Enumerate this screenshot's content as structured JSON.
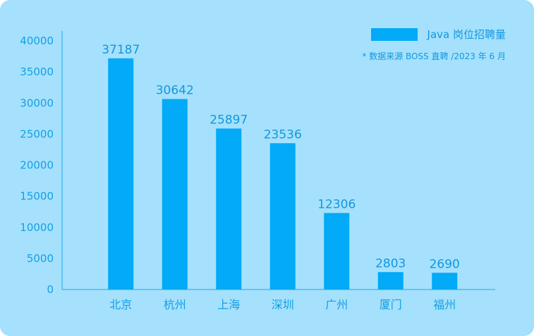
{
  "chart_data": {
    "type": "bar",
    "categories": [
      "北京",
      "杭州",
      "上海",
      "深圳",
      "广州",
      "厦门",
      "福州"
    ],
    "values": [
      37187,
      30642,
      25897,
      23536,
      12306,
      2803,
      2690
    ],
    "series": [
      {
        "name": "Java 岗位招聘量",
        "values": [
          37187,
          30642,
          25897,
          23536,
          12306,
          2803,
          2690
        ]
      }
    ],
    "yticks": [
      0,
      5000,
      10000,
      15000,
      20000,
      25000,
      30000,
      35000,
      40000
    ],
    "ylim": [
      0,
      40000
    ],
    "title": "",
    "xlabel": "",
    "ylabel": "",
    "grid": false,
    "legend_position": "top-right",
    "note": "* 数据来源 BOSS 直聘 /2023 年 6 月",
    "colors": {
      "bar": "#02aaf8",
      "axis": "#1fa8ea",
      "background": "#a5e1fd",
      "text": "#149fe3"
    }
  }
}
